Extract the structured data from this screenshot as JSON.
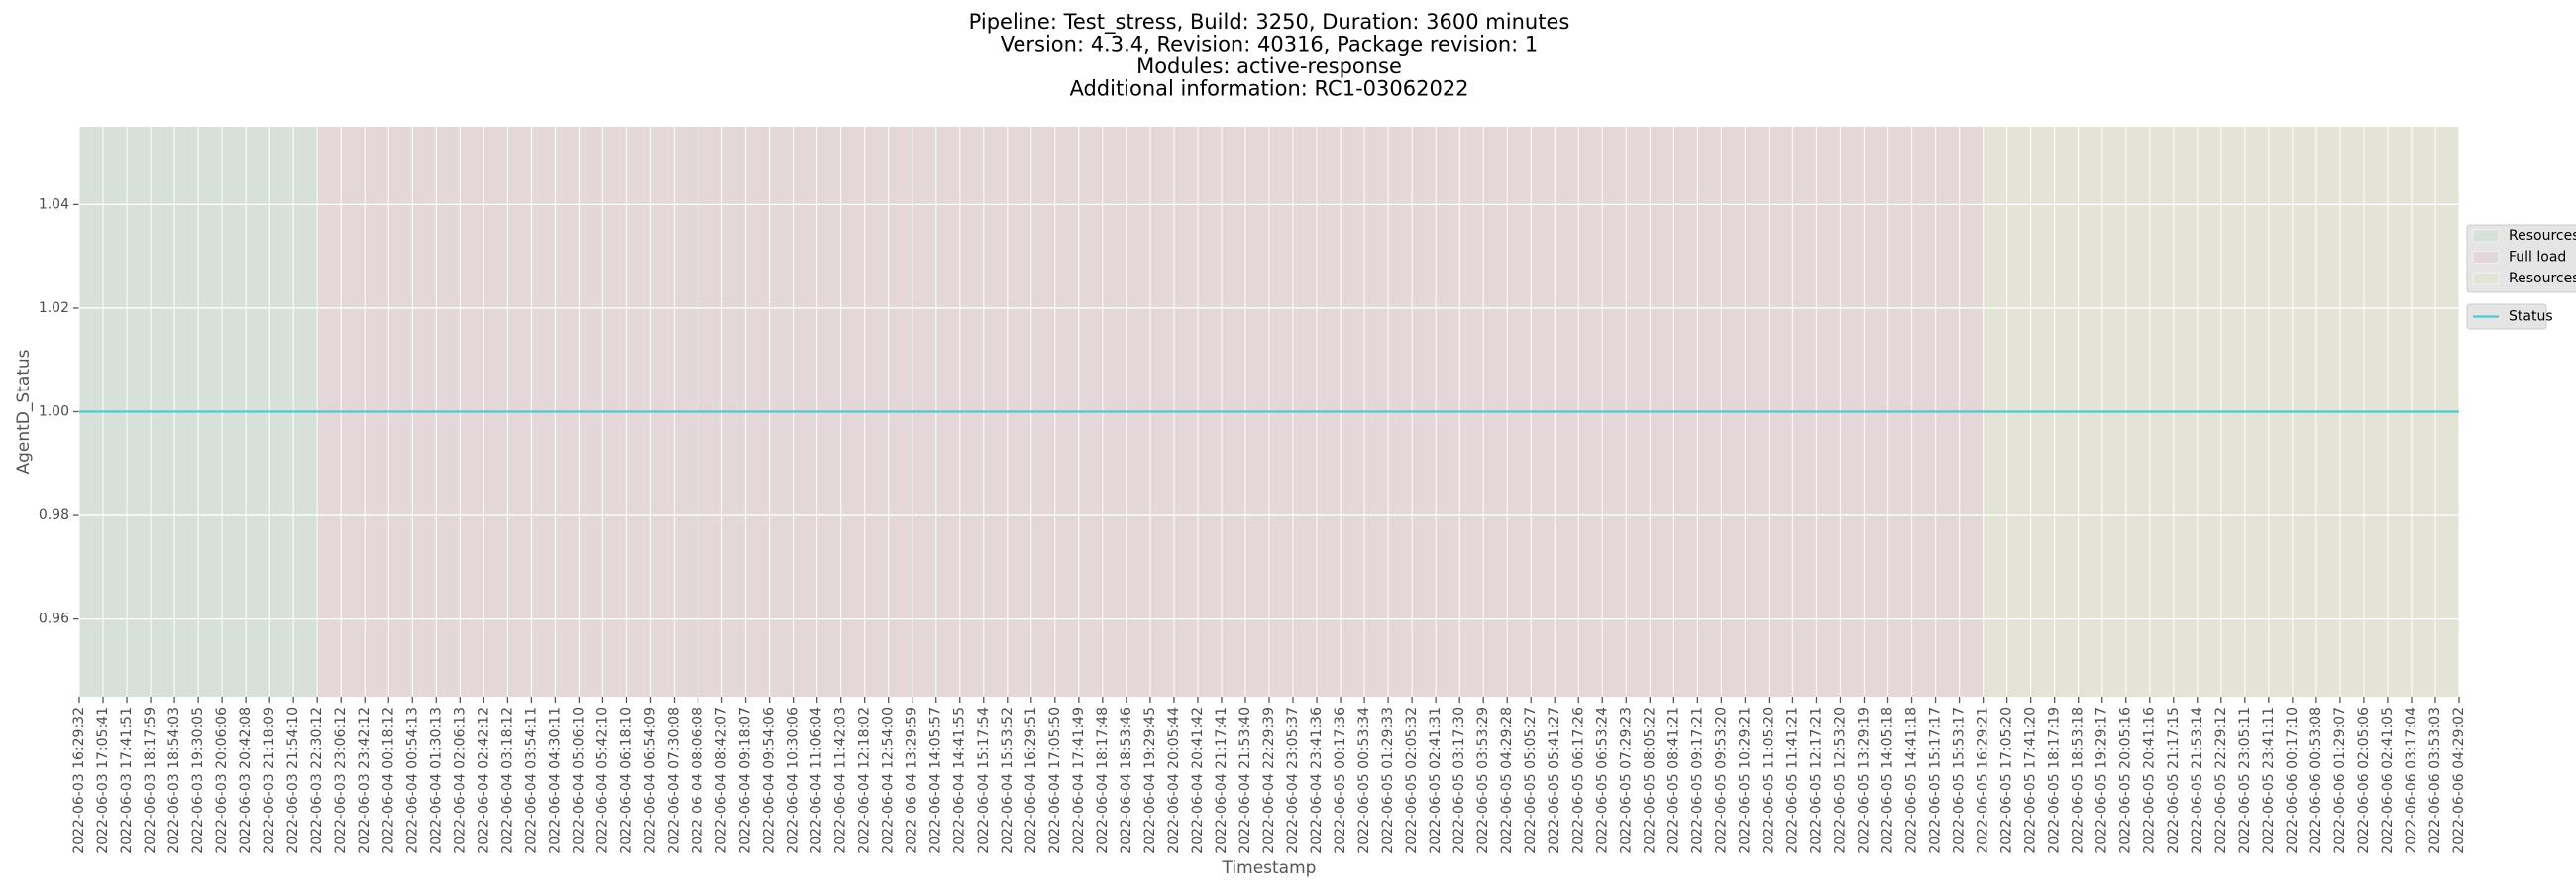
{
  "chart_data": {
    "type": "line",
    "title": [
      "Pipeline: Test_stress, Build: 3250, Duration: 3600 minutes",
      "Version: 4.3.4, Revision: 40316, Package revision: 1",
      "Modules: active-response",
      "Additional information: RC1-03062022"
    ],
    "x_label": "Timestamp",
    "y_label": "AgentD_Status",
    "categories": [
      "2022-06-03 16:29:32",
      "2022-06-03 17:05:41",
      "2022-06-03 17:41:51",
      "2022-06-03 18:17:59",
      "2022-06-03 18:54:03",
      "2022-06-03 19:30:05",
      "2022-06-03 20:06:06",
      "2022-06-03 20:42:08",
      "2022-06-03 21:18:09",
      "2022-06-03 21:54:10",
      "2022-06-03 22:30:12",
      "2022-06-03 23:06:12",
      "2022-06-03 23:42:12",
      "2022-06-04 00:18:12",
      "2022-06-04 00:54:13",
      "2022-06-04 01:30:13",
      "2022-06-04 02:06:13",
      "2022-06-04 02:42:12",
      "2022-06-04 03:18:12",
      "2022-06-04 03:54:11",
      "2022-06-04 04:30:11",
      "2022-06-04 05:06:10",
      "2022-06-04 05:42:10",
      "2022-06-04 06:18:10",
      "2022-06-04 06:54:09",
      "2022-06-04 07:30:08",
      "2022-06-04 08:06:08",
      "2022-06-04 08:42:07",
      "2022-06-04 09:18:07",
      "2022-06-04 09:54:06",
      "2022-06-04 10:30:06",
      "2022-06-04 11:06:04",
      "2022-06-04 11:42:03",
      "2022-06-04 12:18:02",
      "2022-06-04 12:54:00",
      "2022-06-04 13:29:59",
      "2022-06-04 14:05:57",
      "2022-06-04 14:41:55",
      "2022-06-04 15:17:54",
      "2022-06-04 15:53:52",
      "2022-06-04 16:29:51",
      "2022-06-04 17:05:50",
      "2022-06-04 17:41:49",
      "2022-06-04 18:17:48",
      "2022-06-04 18:53:46",
      "2022-06-04 19:29:45",
      "2022-06-04 20:05:44",
      "2022-06-04 20:41:42",
      "2022-06-04 21:17:41",
      "2022-06-04 21:53:40",
      "2022-06-04 22:29:39",
      "2022-06-04 23:05:37",
      "2022-06-04 23:41:36",
      "2022-06-05 00:17:36",
      "2022-06-05 00:53:34",
      "2022-06-05 01:29:33",
      "2022-06-05 02:05:32",
      "2022-06-05 02:41:31",
      "2022-06-05 03:17:30",
      "2022-06-05 03:53:29",
      "2022-06-05 04:29:28",
      "2022-06-05 05:05:27",
      "2022-06-05 05:41:27",
      "2022-06-05 06:17:26",
      "2022-06-05 06:53:24",
      "2022-06-05 07:29:23",
      "2022-06-05 08:05:22",
      "2022-06-05 08:41:21",
      "2022-06-05 09:17:21",
      "2022-06-05 09:53:20",
      "2022-06-05 10:29:21",
      "2022-06-05 11:05:20",
      "2022-06-05 11:41:21",
      "2022-06-05 12:17:21",
      "2022-06-05 12:53:20",
      "2022-06-05 13:29:19",
      "2022-06-05 14:05:18",
      "2022-06-05 14:41:18",
      "2022-06-05 15:17:17",
      "2022-06-05 15:53:17",
      "2022-06-05 16:29:21",
      "2022-06-05 17:05:20",
      "2022-06-05 17:41:20",
      "2022-06-05 18:17:19",
      "2022-06-05 18:53:18",
      "2022-06-05 19:29:17",
      "2022-06-05 20:05:16",
      "2022-06-05 20:41:16",
      "2022-06-05 21:17:15",
      "2022-06-05 21:53:14",
      "2022-06-05 22:29:12",
      "2022-06-05 23:05:11",
      "2022-06-05 23:41:11",
      "2022-06-06 00:17:10",
      "2022-06-06 00:53:08",
      "2022-06-06 01:29:07",
      "2022-06-06 02:05:06",
      "2022-06-06 02:41:05",
      "2022-06-06 03:17:04",
      "2022-06-06 03:53:03",
      "2022-06-06 04:29:02"
    ],
    "series": [
      {
        "name": "Status",
        "color": "#56c7cf",
        "values": [
          1,
          1,
          1,
          1,
          1,
          1,
          1,
          1,
          1,
          1,
          1,
          1,
          1,
          1,
          1,
          1,
          1,
          1,
          1,
          1,
          1,
          1,
          1,
          1,
          1,
          1,
          1,
          1,
          1,
          1,
          1,
          1,
          1,
          1,
          1,
          1,
          1,
          1,
          1,
          1,
          1,
          1,
          1,
          1,
          1,
          1,
          1,
          1,
          1,
          1,
          1,
          1,
          1,
          1,
          1,
          1,
          1,
          1,
          1,
          1,
          1,
          1,
          1,
          1,
          1,
          1,
          1,
          1,
          1,
          1,
          1,
          1,
          1,
          1,
          1,
          1,
          1,
          1,
          1,
          1,
          1,
          1,
          1,
          1,
          1,
          1,
          1,
          1,
          1,
          1,
          1,
          1,
          1,
          1,
          1,
          1,
          1,
          1,
          1,
          1,
          1
        ]
      }
    ],
    "spans": [
      {
        "name": "Resources",
        "color": "#d7e1d9",
        "start": "2022-06-03 16:29:32",
        "end": "2022-06-03 22:30:12"
      },
      {
        "name": "Full load",
        "color": "#e4d7d9",
        "start": "2022-06-03 22:30:12",
        "end": "2022-06-05 16:29:21"
      },
      {
        "name": "Resources",
        "color": "#e4e4d6",
        "start": "2022-06-05 16:29:21",
        "end": "2022-06-06 04:29:02"
      }
    ],
    "ylim": [
      0.945,
      1.055
    ],
    "yticks": [
      0.96,
      0.98,
      {
        "value": 1,
        "label": "1.00"
      },
      1.02,
      1.04
    ],
    "grid": true,
    "legend": "outside right"
  }
}
